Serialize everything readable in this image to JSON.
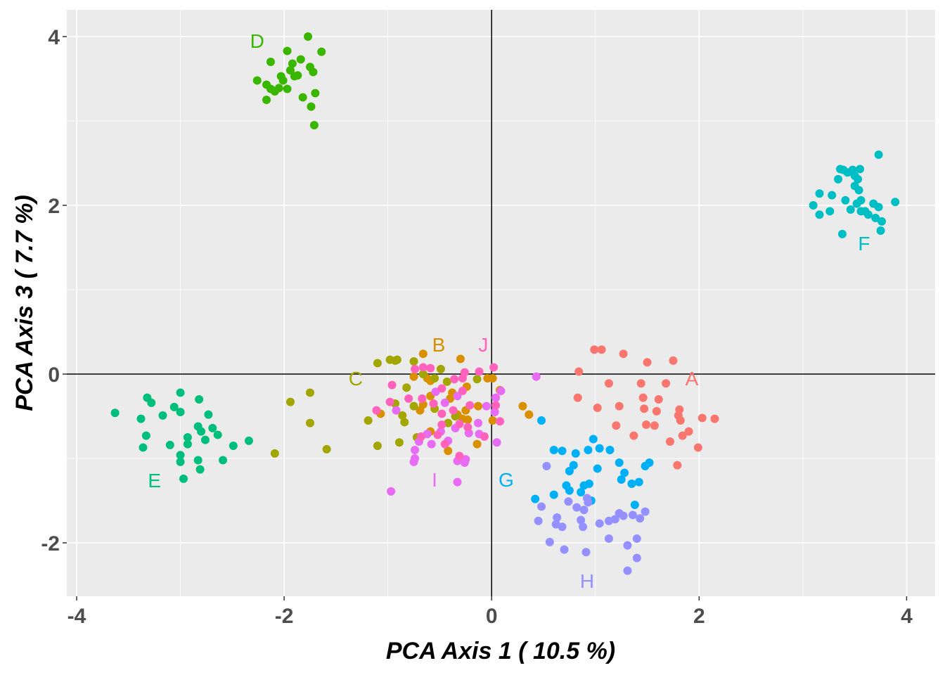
{
  "chart_data": {
    "type": "scatter",
    "title": "",
    "xlabel": "PCA Axis 1 ( 10.5 %)",
    "ylabel": "PCA Axis 3 ( 7.7 %)",
    "xlim": [
      -4.095,
      4.275
    ],
    "ylim": [
      -2.633,
      4.317
    ],
    "xticks": [
      -4,
      -2,
      0,
      2,
      4
    ],
    "yticks": [
      -2,
      0,
      2,
      4
    ],
    "xtick_labels": [
      "-4",
      "-2",
      "0",
      "2",
      "4"
    ],
    "ytick_labels": [
      "-2",
      "0",
      "2",
      "4"
    ],
    "grid": true,
    "reference_lines": {
      "x": 0,
      "y": 0
    },
    "legend": "none",
    "series": [
      {
        "name": "A",
        "color": "#F8766D",
        "label_at": [
          1.93,
          -0.05
        ],
        "points": [
          [
            0.84,
            0.03
          ],
          [
            0.99,
            0.29
          ],
          [
            1.06,
            0.29
          ],
          [
            1.27,
            0.24
          ],
          [
            1.5,
            0.14
          ],
          [
            1.75,
            0.16
          ],
          [
            0.83,
            -0.28
          ],
          [
            1.02,
            -0.4
          ],
          [
            1.13,
            -0.11
          ],
          [
            1.23,
            -0.38
          ],
          [
            1.44,
            -0.11
          ],
          [
            1.68,
            -0.11
          ],
          [
            1.46,
            -0.28
          ],
          [
            1.47,
            -0.41
          ],
          [
            1.59,
            -0.44
          ],
          [
            1.61,
            -0.3
          ],
          [
            1.81,
            -0.42
          ],
          [
            1.8,
            -0.49
          ],
          [
            1.2,
            -0.61
          ],
          [
            1.37,
            -0.73
          ],
          [
            1.49,
            -0.6
          ],
          [
            1.57,
            -0.61
          ],
          [
            1.72,
            -0.8
          ],
          [
            1.84,
            -0.73
          ],
          [
            1.9,
            -0.68
          ],
          [
            1.99,
            -0.87
          ],
          [
            2.03,
            -0.52
          ],
          [
            2.15,
            -0.53
          ],
          [
            1.79,
            -1.08
          ],
          [
            1.82,
            -0.55
          ]
        ]
      },
      {
        "name": "B",
        "color": "#D89000",
        "label_at": [
          -0.51,
          0.35
        ],
        "points": [
          [
            -0.66,
            0.24
          ],
          [
            -0.3,
            0.18
          ],
          [
            -0.75,
            -0.03
          ],
          [
            -0.62,
            -0.05
          ],
          [
            -0.59,
            -0.08
          ],
          [
            -0.04,
            -0.05
          ],
          [
            0.01,
            -0.05
          ],
          [
            -0.24,
            -0.15
          ],
          [
            -0.38,
            -0.22
          ],
          [
            -0.59,
            -0.26
          ],
          [
            -0.4,
            -0.29
          ],
          [
            -0.66,
            -0.36
          ],
          [
            -0.69,
            -0.43
          ],
          [
            -0.25,
            -0.43
          ],
          [
            -0.13,
            -0.38
          ],
          [
            -0.28,
            -0.53
          ],
          [
            -0.23,
            -0.54
          ],
          [
            0.01,
            -0.55
          ],
          [
            -1.07,
            -0.47
          ],
          [
            -0.59,
            -0.68
          ],
          [
            -0.14,
            -0.83
          ],
          [
            -0.42,
            -0.91
          ],
          [
            0.08,
            -0.19
          ],
          [
            0.3,
            -0.38
          ],
          [
            0.36,
            -0.48
          ],
          [
            -0.33,
            -0.48
          ]
        ]
      },
      {
        "name": "C",
        "color": "#A3A500",
        "label_at": [
          -1.31,
          -0.05
        ],
        "points": [
          [
            -1.94,
            -0.33
          ],
          [
            -1.75,
            -0.22
          ],
          [
            -1.75,
            -0.58
          ],
          [
            -2.09,
            -0.94
          ],
          [
            -1.59,
            -0.89
          ],
          [
            -1.1,
            0.13
          ],
          [
            -0.98,
            0.17
          ],
          [
            -0.93,
            0.16
          ],
          [
            -0.91,
            0.17
          ],
          [
            -0.75,
            0.15
          ],
          [
            -0.49,
            0.06
          ],
          [
            -0.55,
            -0.05
          ],
          [
            -0.43,
            -0.09
          ],
          [
            -0.82,
            -0.16
          ],
          [
            -0.93,
            -0.35
          ],
          [
            -0.75,
            -0.38
          ],
          [
            -0.86,
            -0.49
          ],
          [
            -0.84,
            -0.57
          ],
          [
            -1.19,
            -0.55
          ],
          [
            -0.55,
            -0.41
          ],
          [
            -0.35,
            -0.5
          ],
          [
            -0.42,
            -0.58
          ],
          [
            -0.14,
            -0.06
          ],
          [
            -1.1,
            -0.85
          ],
          [
            -0.89,
            -0.81
          ],
          [
            -0.72,
            -0.75
          ],
          [
            -0.66,
            0.0
          ]
        ]
      },
      {
        "name": "D",
        "color": "#39B600",
        "label_at": [
          -2.26,
          3.95
        ],
        "points": [
          [
            -2.26,
            3.48
          ],
          [
            -2.17,
            3.43
          ],
          [
            -2.17,
            3.25
          ],
          [
            -2.13,
            3.7
          ],
          [
            -2.09,
            3.35
          ],
          [
            -2.05,
            3.39
          ],
          [
            -2.03,
            3.53
          ],
          [
            -1.97,
            3.38
          ],
          [
            -1.97,
            3.83
          ],
          [
            -1.94,
            3.6
          ],
          [
            -1.92,
            3.68
          ],
          [
            -1.9,
            3.53
          ],
          [
            -1.87,
            3.54
          ],
          [
            -1.84,
            3.73
          ],
          [
            -1.82,
            3.28
          ],
          [
            -1.77,
            4.0
          ],
          [
            -1.75,
            3.64
          ],
          [
            -1.74,
            3.17
          ],
          [
            -1.72,
            3.58
          ],
          [
            -1.7,
            3.33
          ],
          [
            -1.71,
            2.95
          ],
          [
            -1.64,
            3.82
          ],
          [
            -2.01,
            3.48
          ],
          [
            -2.13,
            3.38
          ]
        ]
      },
      {
        "name": "E",
        "color": "#00BF7D",
        "label_at": [
          -3.25,
          -1.26
        ],
        "points": [
          [
            -3.63,
            -0.46
          ],
          [
            -3.32,
            -0.28
          ],
          [
            -3.28,
            -0.34
          ],
          [
            -3.0,
            -0.22
          ],
          [
            -2.82,
            -0.3
          ],
          [
            -3.38,
            -0.53
          ],
          [
            -3.17,
            -0.49
          ],
          [
            -3.06,
            -0.39
          ],
          [
            -3.0,
            -0.45
          ],
          [
            -2.73,
            -0.48
          ],
          [
            -3.33,
            -0.73
          ],
          [
            -2.83,
            -0.62
          ],
          [
            -2.8,
            -0.68
          ],
          [
            -2.69,
            -0.64
          ],
          [
            -2.64,
            -0.72
          ],
          [
            -2.93,
            -0.75
          ],
          [
            -2.93,
            -0.83
          ],
          [
            -2.76,
            -0.78
          ],
          [
            -3.36,
            -0.87
          ],
          [
            -3.1,
            -0.84
          ],
          [
            -3.0,
            -0.96
          ],
          [
            -3.0,
            -1.04
          ],
          [
            -2.83,
            -1.02
          ],
          [
            -2.81,
            -1.13
          ],
          [
            -2.97,
            -1.24
          ],
          [
            -2.59,
            -1.02
          ],
          [
            -2.49,
            -0.85
          ],
          [
            -2.34,
            -0.79
          ]
        ]
      },
      {
        "name": "F",
        "color": "#00BFC4",
        "label_at": [
          3.59,
          1.55
        ],
        "points": [
          [
            3.1,
            2.0
          ],
          [
            3.16,
            2.14
          ],
          [
            3.16,
            1.89
          ],
          [
            3.26,
            1.93
          ],
          [
            3.28,
            2.12
          ],
          [
            3.34,
            2.31
          ],
          [
            3.36,
            2.43
          ],
          [
            3.38,
            1.66
          ],
          [
            3.41,
            2.06
          ],
          [
            3.43,
            2.39
          ],
          [
            3.46,
            1.95
          ],
          [
            3.48,
            2.42
          ],
          [
            3.5,
            2.23
          ],
          [
            3.52,
            2.02
          ],
          [
            3.53,
            2.31
          ],
          [
            3.54,
            2.18
          ],
          [
            3.55,
            2.43
          ],
          [
            3.56,
            1.93
          ],
          [
            3.6,
            1.93
          ],
          [
            3.63,
            1.89
          ],
          [
            3.68,
            2.02
          ],
          [
            3.7,
            1.85
          ],
          [
            3.73,
            1.98
          ],
          [
            3.73,
            2.6
          ],
          [
            3.75,
            1.7
          ],
          [
            3.76,
            1.81
          ],
          [
            3.89,
            2.04
          ],
          [
            3.56,
            2.06
          ],
          [
            3.5,
            2.35
          ],
          [
            3.39,
            2.42
          ]
        ]
      },
      {
        "name": "G",
        "color": "#00B0F6",
        "label_at": [
          0.14,
          -1.25
        ],
        "points": [
          [
            0.48,
            -0.55
          ],
          [
            0.6,
            -0.9
          ],
          [
            0.68,
            -0.91
          ],
          [
            0.81,
            -0.94
          ],
          [
            0.93,
            -0.9
          ],
          [
            1.04,
            -0.88
          ],
          [
            1.14,
            -0.9
          ],
          [
            0.98,
            -0.77
          ],
          [
            0.42,
            -1.48
          ],
          [
            0.6,
            -1.43
          ],
          [
            0.75,
            -1.15
          ],
          [
            0.72,
            -1.32
          ],
          [
            0.79,
            -1.08
          ],
          [
            0.89,
            -1.32
          ],
          [
            0.94,
            -1.3
          ],
          [
            1.02,
            -1.12
          ],
          [
            0.96,
            -1.5
          ],
          [
            1.23,
            -1.05
          ],
          [
            1.28,
            -1.17
          ],
          [
            1.25,
            -1.25
          ],
          [
            1.35,
            -1.3
          ],
          [
            1.42,
            -1.28
          ],
          [
            1.48,
            -1.09
          ],
          [
            1.52,
            -1.05
          ],
          [
            1.38,
            -1.55
          ],
          [
            0.75,
            -1.38
          ],
          [
            0.86,
            -1.4
          ]
        ]
      },
      {
        "name": "H",
        "color": "#9590FF",
        "label_at": [
          0.92,
          -2.45
        ],
        "points": [
          [
            0.53,
            -1.09
          ],
          [
            0.48,
            -1.57
          ],
          [
            0.45,
            -1.74
          ],
          [
            0.56,
            -1.99
          ],
          [
            0.62,
            -1.78
          ],
          [
            0.63,
            -1.7
          ],
          [
            0.68,
            -1.81
          ],
          [
            0.7,
            -2.08
          ],
          [
            0.74,
            -1.51
          ],
          [
            0.82,
            -1.58
          ],
          [
            0.86,
            -1.73
          ],
          [
            0.88,
            -1.81
          ],
          [
            0.91,
            -2.11
          ],
          [
            0.92,
            -1.47
          ],
          [
            0.93,
            -1.52
          ],
          [
            1.04,
            -1.77
          ],
          [
            1.13,
            -1.74
          ],
          [
            1.13,
            -1.95
          ],
          [
            1.23,
            -1.65
          ],
          [
            1.27,
            -1.68
          ],
          [
            1.31,
            -2.03
          ],
          [
            1.31,
            -2.33
          ],
          [
            1.36,
            -1.67
          ],
          [
            1.4,
            -2.18
          ],
          [
            1.4,
            -1.95
          ],
          [
            1.43,
            -1.71
          ],
          [
            1.48,
            -1.63
          ],
          [
            0.89,
            -1.61
          ],
          [
            1.19,
            -1.72
          ]
        ]
      },
      {
        "name": "I",
        "color": "#E76BF3",
        "label_at": [
          -0.55,
          -1.25
        ],
        "points": [
          [
            0.43,
            -0.03
          ],
          [
            0.09,
            -0.2
          ],
          [
            0.04,
            -0.28
          ],
          [
            0.03,
            -0.45
          ],
          [
            -0.05,
            -0.38
          ],
          [
            -0.45,
            -0.34
          ],
          [
            -0.54,
            -0.21
          ],
          [
            -0.33,
            -0.26
          ],
          [
            -0.92,
            -0.43
          ],
          [
            -0.13,
            -0.58
          ],
          [
            -0.35,
            -0.64
          ],
          [
            -0.22,
            -0.7
          ],
          [
            -0.12,
            -0.71
          ],
          [
            -0.62,
            -0.71
          ],
          [
            -0.7,
            -0.8
          ],
          [
            -0.58,
            -0.83
          ],
          [
            -0.42,
            -0.79
          ],
          [
            -0.74,
            -0.9
          ],
          [
            -0.74,
            -1.0
          ],
          [
            -0.75,
            -1.04
          ],
          [
            -0.33,
            -1.03
          ],
          [
            -0.25,
            -1.01
          ],
          [
            -0.26,
            -1.05
          ],
          [
            0.05,
            -0.81
          ],
          [
            -0.33,
            -1.28
          ],
          [
            -0.97,
            -1.39
          ],
          [
            -0.49,
            -0.68
          ]
        ]
      },
      {
        "name": "J",
        "color": "#FF62BC",
        "label_at": [
          -0.08,
          0.35
        ],
        "points": [
          [
            -0.74,
            0.06
          ],
          [
            -0.66,
            0.08
          ],
          [
            -0.59,
            0.07
          ],
          [
            -0.26,
            0.02
          ],
          [
            -0.12,
            0.03
          ],
          [
            0.02,
            0.08
          ],
          [
            -0.36,
            -0.06
          ],
          [
            -0.28,
            -0.05
          ],
          [
            -0.96,
            -0.13
          ],
          [
            -0.48,
            -0.17
          ],
          [
            -0.28,
            -0.2
          ],
          [
            -0.8,
            -0.29
          ],
          [
            -0.67,
            -0.29
          ],
          [
            -0.56,
            -0.35
          ],
          [
            -0.98,
            -0.33
          ],
          [
            -1.11,
            -0.43
          ],
          [
            -0.48,
            -0.47
          ],
          [
            -0.37,
            -0.43
          ],
          [
            -0.21,
            -0.37
          ],
          [
            0.04,
            -0.37
          ],
          [
            0.08,
            -0.56
          ],
          [
            -0.48,
            -0.6
          ],
          [
            -0.31,
            -0.59
          ],
          [
            -0.23,
            -0.63
          ],
          [
            -0.52,
            -0.72
          ],
          [
            -0.68,
            -0.74
          ],
          [
            -0.07,
            -0.74
          ],
          [
            -0.45,
            -0.83
          ],
          [
            -0.31,
            -0.97
          ]
        ]
      }
    ]
  }
}
